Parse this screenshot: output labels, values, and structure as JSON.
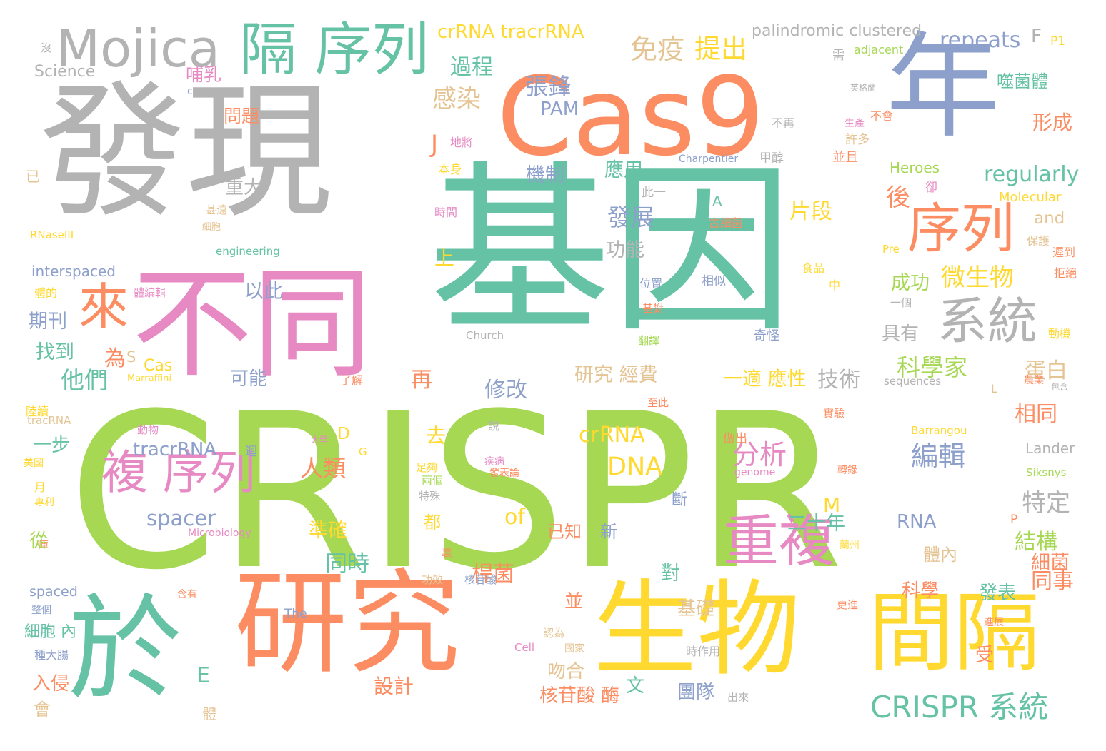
{
  "palette": {
    "green": "#66c2a5",
    "orange": "#fc8d62",
    "blue": "#8da0cb",
    "pink": "#e78ac3",
    "lime": "#a6d854",
    "yellow": "#ffd92f",
    "tan": "#e5c494",
    "gray": "#b3b3b3"
  },
  "words": [
    {
      "t": "CRISPR",
      "c": "lime"
    },
    {
      "t": "基因",
      "c": "green"
    },
    {
      "t": "發現",
      "c": "gray"
    },
    {
      "t": "Cas9",
      "c": "orange"
    },
    {
      "t": "年",
      "c": "blue"
    },
    {
      "t": "不同",
      "c": "pink"
    },
    {
      "t": "研究",
      "c": "orange"
    },
    {
      "t": "生物",
      "c": "yellow"
    },
    {
      "t": "於",
      "c": "green"
    },
    {
      "t": "間隔",
      "c": "yellow"
    },
    {
      "t": "Mojica",
      "c": "gray"
    },
    {
      "t": "隔 序列",
      "c": "green"
    },
    {
      "t": "序列",
      "c": "orange"
    },
    {
      "t": "系統",
      "c": "gray"
    },
    {
      "t": "重複",
      "c": "pink"
    },
    {
      "t": "複 序列",
      "c": "pink"
    },
    {
      "t": "來",
      "c": "orange"
    },
    {
      "t": "CRISPR 系統",
      "c": "green"
    },
    {
      "t": "crRNA tracrRNA",
      "c": "yellow"
    },
    {
      "t": "免疫",
      "c": "tan"
    },
    {
      "t": "提出",
      "c": "yellow"
    },
    {
      "t": "palindromic clustered",
      "c": "gray"
    },
    {
      "t": "repeats",
      "c": "blue"
    },
    {
      "t": "F",
      "c": "gray"
    },
    {
      "t": "P1",
      "c": "yellow"
    },
    {
      "t": "Science",
      "c": "gray"
    },
    {
      "t": "沒",
      "c": "gray"
    },
    {
      "t": "adjacent",
      "c": "lime"
    },
    {
      "t": "需",
      "c": "gray"
    },
    {
      "t": "哺乳",
      "c": "pink"
    },
    {
      "t": "過程",
      "c": "green"
    },
    {
      "t": "張鋒",
      "c": "blue"
    },
    {
      "t": "PAM",
      "c": "blue"
    },
    {
      "t": "噬菌體",
      "c": "green"
    },
    {
      "t": "英格蘭",
      "c": "gray"
    },
    {
      "t": "感染",
      "c": "tan"
    },
    {
      "t": "問題",
      "c": "orange"
    },
    {
      "t": "c",
      "c": "blue"
    },
    {
      "t": "生產",
      "c": "pink"
    },
    {
      "t": "地將",
      "c": "pink"
    },
    {
      "t": "不再",
      "c": "gray"
    },
    {
      "t": "不會",
      "c": "orange"
    },
    {
      "t": "形成",
      "c": "orange"
    },
    {
      "t": "J",
      "c": "orange"
    },
    {
      "t": "許多",
      "c": "tan"
    },
    {
      "t": "已",
      "c": "tan"
    },
    {
      "t": "本身",
      "c": "yellow"
    },
    {
      "t": "機制",
      "c": "blue"
    },
    {
      "t": "應用",
      "c": "green"
    },
    {
      "t": "Charpentier",
      "c": "blue"
    },
    {
      "t": "甲醇",
      "c": "gray"
    },
    {
      "t": "並且",
      "c": "orange"
    },
    {
      "t": "Heroes",
      "c": "lime"
    },
    {
      "t": "regularly",
      "c": "green"
    },
    {
      "t": "重大",
      "c": "gray"
    },
    {
      "t": "卻",
      "c": "pink"
    },
    {
      "t": "Molecular",
      "c": "yellow"
    },
    {
      "t": "後",
      "c": "orange"
    },
    {
      "t": "此一",
      "c": "gray"
    },
    {
      "t": "A",
      "c": "green"
    },
    {
      "t": "片段",
      "c": "yellow"
    },
    {
      "t": "甚遠",
      "c": "tan"
    },
    {
      "t": "時間",
      "c": "pink"
    },
    {
      "t": "古細菌",
      "c": "orange"
    },
    {
      "t": "發展",
      "c": "blue"
    },
    {
      "t": "and",
      "c": "tan"
    },
    {
      "t": "細胞",
      "c": "tan"
    },
    {
      "t": "保護",
      "c": "tan"
    },
    {
      "t": "RNaseIII",
      "c": "yellow"
    },
    {
      "t": "engineering",
      "c": "green"
    },
    {
      "t": "功能",
      "c": "gray"
    },
    {
      "t": "上",
      "c": "yellow"
    },
    {
      "t": "Pre",
      "c": "yellow"
    },
    {
      "t": "遲到",
      "c": "orange"
    },
    {
      "t": "interspaced",
      "c": "blue"
    },
    {
      "t": "食品",
      "c": "yellow"
    },
    {
      "t": "拒絕",
      "c": "orange"
    },
    {
      "t": "以此",
      "c": "blue"
    },
    {
      "t": "成功",
      "c": "lime"
    },
    {
      "t": "微生物",
      "c": "yellow"
    },
    {
      "t": "體的",
      "c": "yellow"
    },
    {
      "t": "體編輯",
      "c": "pink"
    },
    {
      "t": "位置",
      "c": "blue"
    },
    {
      "t": "相似",
      "c": "blue"
    },
    {
      "t": "中",
      "c": "yellow"
    },
    {
      "t": "一個",
      "c": "gray"
    },
    {
      "t": "期刊",
      "c": "blue"
    },
    {
      "t": "基對",
      "c": "orange"
    },
    {
      "t": "具有",
      "c": "gray"
    },
    {
      "t": "Church",
      "c": "gray"
    },
    {
      "t": "奇怪",
      "c": "blue"
    },
    {
      "t": "動機",
      "c": "yellow"
    },
    {
      "t": "找到",
      "c": "green"
    },
    {
      "t": "為",
      "c": "orange"
    },
    {
      "t": "S",
      "c": "tan"
    },
    {
      "t": "翻譯",
      "c": "lime"
    },
    {
      "t": "Cas",
      "c": "yellow"
    },
    {
      "t": "研究 經費",
      "c": "tan"
    },
    {
      "t": "科學家",
      "c": "lime"
    },
    {
      "t": "蛋白",
      "c": "tan"
    },
    {
      "t": "農業",
      "c": "orange"
    },
    {
      "t": "他們",
      "c": "green"
    },
    {
      "t": "Marraffini",
      "c": "yellow"
    },
    {
      "t": "可能",
      "c": "blue"
    },
    {
      "t": "了解",
      "c": "orange"
    },
    {
      "t": "再",
      "c": "orange"
    },
    {
      "t": "一適 應性",
      "c": "yellow"
    },
    {
      "t": "技術",
      "c": "gray"
    },
    {
      "t": "sequences",
      "c": "gray"
    },
    {
      "t": "包含",
      "c": "gray"
    },
    {
      "t": "修改",
      "c": "blue"
    },
    {
      "t": "L",
      "c": "tan"
    },
    {
      "t": "陸續",
      "c": "yellow"
    },
    {
      "t": "至此",
      "c": "orange"
    },
    {
      "t": "實驗",
      "c": "orange"
    },
    {
      "t": "tracRNA",
      "c": "tan"
    },
    {
      "t": "相同",
      "c": "orange"
    },
    {
      "t": "一步",
      "c": "green"
    },
    {
      "t": "動物",
      "c": "pink"
    },
    {
      "t": "去",
      "c": "yellow"
    },
    {
      "t": "D",
      "c": "yellow"
    },
    {
      "t": "大學",
      "c": "pink"
    },
    {
      "t": "crRNA",
      "c": "yellow"
    },
    {
      "t": "Barrangou",
      "c": "yellow"
    },
    {
      "t": "說",
      "c": "gray"
    },
    {
      "t": "tracrRNA",
      "c": "blue"
    },
    {
      "t": "迴",
      "c": "blue"
    },
    {
      "t": "G",
      "c": "yellow"
    },
    {
      "t": "分析",
      "c": "pink"
    },
    {
      "t": "編輯",
      "c": "blue"
    },
    {
      "t": "做出",
      "c": "orange"
    },
    {
      "t": "Lander",
      "c": "gray"
    },
    {
      "t": "美國",
      "c": "yellow"
    },
    {
      "t": "人類",
      "c": "orange"
    },
    {
      "t": "DNA",
      "c": "yellow"
    },
    {
      "t": "疾病",
      "c": "pink"
    },
    {
      "t": "足夠",
      "c": "yellow"
    },
    {
      "t": "發表論",
      "c": "orange"
    },
    {
      "t": "genome",
      "c": "pink"
    },
    {
      "t": "轉錄",
      "c": "orange"
    },
    {
      "t": "Siksnys",
      "c": "lime"
    },
    {
      "t": "月",
      "c": "yellow"
    },
    {
      "t": "兩個",
      "c": "lime"
    },
    {
      "t": "特殊",
      "c": "gray"
    },
    {
      "t": "專利",
      "c": "yellow"
    },
    {
      "t": "spacer",
      "c": "blue"
    },
    {
      "t": "of",
      "c": "yellow"
    },
    {
      "t": "M",
      "c": "yellow"
    },
    {
      "t": "特定",
      "c": "gray"
    },
    {
      "t": "斷",
      "c": "blue"
    },
    {
      "t": "二十年",
      "c": "green"
    },
    {
      "t": "P",
      "c": "orange"
    },
    {
      "t": "RNA",
      "c": "blue"
    },
    {
      "t": "都",
      "c": "yellow"
    },
    {
      "t": "已知",
      "c": "orange"
    },
    {
      "t": "新",
      "c": "blue"
    },
    {
      "t": "結構",
      "c": "lime"
    },
    {
      "t": "庫",
      "c": "orange"
    },
    {
      "t": "Microbiology",
      "c": "pink"
    },
    {
      "t": "從",
      "c": "lime"
    },
    {
      "t": "準確",
      "c": "yellow"
    },
    {
      "t": "蘭州",
      "c": "yellow"
    },
    {
      "t": "細菌",
      "c": "orange"
    },
    {
      "t": "桿菌",
      "c": "orange"
    },
    {
      "t": "裏",
      "c": "orange"
    },
    {
      "t": "體內",
      "c": "tan"
    },
    {
      "t": "同時",
      "c": "green"
    },
    {
      "t": "對",
      "c": "green"
    },
    {
      "t": "spaced",
      "c": "blue"
    },
    {
      "t": "功效",
      "c": "tan"
    },
    {
      "t": "核苷酸",
      "c": "blue"
    },
    {
      "t": "同事",
      "c": "orange"
    },
    {
      "t": "科學",
      "c": "orange"
    },
    {
      "t": "發表",
      "c": "green"
    },
    {
      "t": "整個",
      "c": "blue"
    },
    {
      "t": "含有",
      "c": "orange"
    },
    {
      "t": "並",
      "c": "orange"
    },
    {
      "t": "基礎",
      "c": "tan"
    },
    {
      "t": "The",
      "c": "blue"
    },
    {
      "t": "更進",
      "c": "orange"
    },
    {
      "t": "細胞 內",
      "c": "green"
    },
    {
      "t": "認為",
      "c": "tan"
    },
    {
      "t": "進展",
      "c": "orange"
    },
    {
      "t": "E",
      "c": "green"
    },
    {
      "t": "Cell",
      "c": "pink"
    },
    {
      "t": "國家",
      "c": "tan"
    },
    {
      "t": "種大腸",
      "c": "blue"
    },
    {
      "t": "時作用",
      "c": "gray"
    },
    {
      "t": "受",
      "c": "orange"
    },
    {
      "t": "吻合",
      "c": "tan"
    },
    {
      "t": "設計",
      "c": "orange"
    },
    {
      "t": "入侵",
      "c": "orange"
    },
    {
      "t": "文",
      "c": "green"
    },
    {
      "t": "團隊",
      "c": "blue"
    },
    {
      "t": "核苷酸 酶",
      "c": "orange"
    },
    {
      "t": "會",
      "c": "tan"
    },
    {
      "t": "體",
      "c": "tan"
    },
    {
      "t": "出來",
      "c": "gray"
    }
  ]
}
